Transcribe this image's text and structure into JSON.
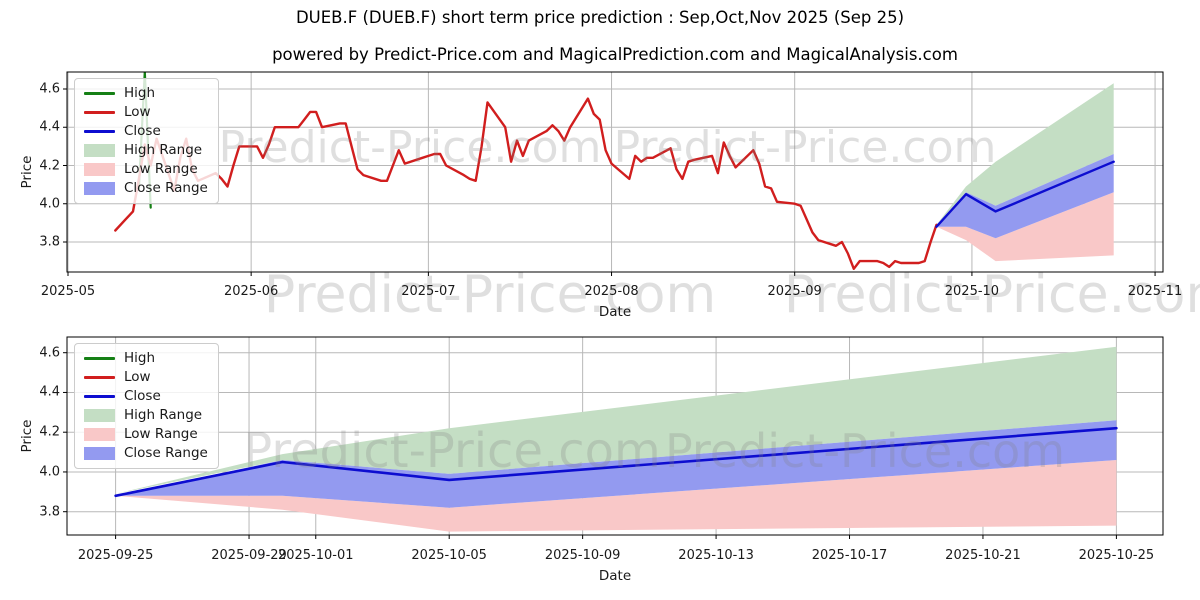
{
  "figure": {
    "title": "DUEB.F (DUEB.F) short term price prediction : Sep,Oct,Nov 2025 (Sep 25)",
    "subtitle": "powered by Predict-Price.com and MagicalPrediction.com and MagicalAnalysis.com",
    "watermark_text": "Predict-Price.com",
    "background": "#ffffff"
  },
  "colors": {
    "high_line": "#158015",
    "low_line": "#d11e1e",
    "close_line": "#0d0dd0",
    "high_range_fill": "#c4dec4",
    "low_range_fill": "#f9c8c8",
    "close_range_fill": "#939af0",
    "grid": "#b8b8b8",
    "spine": "#000000",
    "tick_label": "#1a1a1a",
    "watermark": "#808080"
  },
  "legend": {
    "items": [
      {
        "label": "High",
        "swatch": "line",
        "color": "#158015"
      },
      {
        "label": "Low",
        "swatch": "line",
        "color": "#d11e1e"
      },
      {
        "label": "Close",
        "swatch": "line",
        "color": "#0d0dd0"
      },
      {
        "label": "High Range",
        "swatch": "patch",
        "color": "#c4dec4"
      },
      {
        "label": "Low Range",
        "swatch": "patch",
        "color": "#f9c8c8"
      },
      {
        "label": "Close Range",
        "swatch": "patch",
        "color": "#939af0"
      }
    ]
  },
  "chart_data": [
    {
      "type": "line",
      "title": "",
      "xlabel": "Date",
      "ylabel": "Price",
      "grid": true,
      "legend_position": "upper left",
      "x_range": [
        "2025-05-01",
        "2025-11-01"
      ],
      "ylim": [
        3.64,
        4.69
      ],
      "yticks": [
        {
          "v": 3.8,
          "label": "3.8"
        },
        {
          "v": 4.0,
          "label": "4.0"
        },
        {
          "v": 4.2,
          "label": "4.2"
        },
        {
          "v": 4.4,
          "label": "4.4"
        },
        {
          "v": 4.6,
          "label": "4.6"
        }
      ],
      "xticks": [
        {
          "d": "2025-05-01",
          "label": "2025-05"
        },
        {
          "d": "2025-06-01",
          "label": "2025-06"
        },
        {
          "d": "2025-07-01",
          "label": "2025-07"
        },
        {
          "d": "2025-08-01",
          "label": "2025-08"
        },
        {
          "d": "2025-09-01",
          "label": "2025-09"
        },
        {
          "d": "2025-10-01",
          "label": "2025-10"
        },
        {
          "d": "2025-11-01",
          "label": "2025-11"
        }
      ],
      "bands": [
        {
          "name": "High Range",
          "color_key": "high_range_fill",
          "points": [
            [
              "2025-09-25",
              3.89,
              3.89
            ],
            [
              "2025-09-30",
              4.06,
              4.09
            ],
            [
              "2025-10-05",
              3.99,
              4.22
            ],
            [
              "2025-10-25",
              4.26,
              4.63
            ]
          ]
        },
        {
          "name": "Low Range",
          "color_key": "low_range_fill",
          "points": [
            [
              "2025-09-25",
              3.88,
              3.88
            ],
            [
              "2025-09-30",
              3.81,
              3.88
            ],
            [
              "2025-10-05",
              3.7,
              3.82
            ],
            [
              "2025-10-25",
              3.73,
              4.06
            ]
          ]
        },
        {
          "name": "Close Range",
          "color_key": "close_range_fill",
          "points": [
            [
              "2025-09-25",
              3.88,
              3.88
            ],
            [
              "2025-09-30",
              3.88,
              4.06
            ],
            [
              "2025-10-05",
              3.82,
              3.99
            ],
            [
              "2025-10-25",
              4.06,
              4.26
            ]
          ]
        }
      ],
      "series": [
        {
          "name": "High",
          "color_key": "high_line",
          "width": 2.2,
          "points": [
            [
              "2025-05-13",
              4.08
            ],
            [
              "2025-05-14",
              4.69
            ],
            [
              "2025-05-15",
              3.98
            ]
          ]
        },
        {
          "name": "Low",
          "color_key": "low_line",
          "width": 2.4,
          "points": [
            [
              "2025-05-09",
              3.86
            ],
            [
              "2025-05-12",
              3.96
            ],
            [
              "2025-05-13",
              4.13
            ],
            [
              "2025-05-14",
              4.31
            ],
            [
              "2025-05-15",
              4.2
            ],
            [
              "2025-05-16",
              4.34
            ],
            [
              "2025-05-19",
              4.07
            ],
            [
              "2025-05-20",
              4.24
            ],
            [
              "2025-05-21",
              4.34
            ],
            [
              "2025-05-22",
              4.18
            ],
            [
              "2025-05-23",
              4.12
            ],
            [
              "2025-05-26",
              4.16
            ],
            [
              "2025-05-27",
              4.13
            ],
            [
              "2025-05-28",
              4.09
            ],
            [
              "2025-05-29",
              4.2
            ],
            [
              "2025-05-30",
              4.3
            ],
            [
              "2025-06-02",
              4.3
            ],
            [
              "2025-06-03",
              4.24
            ],
            [
              "2025-06-04",
              4.31
            ],
            [
              "2025-06-05",
              4.4
            ],
            [
              "2025-06-06",
              4.4
            ],
            [
              "2025-06-09",
              4.4
            ],
            [
              "2025-06-10",
              4.44
            ],
            [
              "2025-06-11",
              4.48
            ],
            [
              "2025-06-12",
              4.48
            ],
            [
              "2025-06-13",
              4.4
            ],
            [
              "2025-06-16",
              4.42
            ],
            [
              "2025-06-17",
              4.42
            ],
            [
              "2025-06-18",
              4.3
            ],
            [
              "2025-06-19",
              4.18
            ],
            [
              "2025-06-20",
              4.15
            ],
            [
              "2025-06-23",
              4.12
            ],
            [
              "2025-06-24",
              4.12
            ],
            [
              "2025-06-25",
              4.2
            ],
            [
              "2025-06-26",
              4.28
            ],
            [
              "2025-06-27",
              4.21
            ],
            [
              "2025-06-30",
              4.24
            ],
            [
              "2025-07-01",
              4.25
            ],
            [
              "2025-07-02",
              4.26
            ],
            [
              "2025-07-03",
              4.26
            ],
            [
              "2025-07-04",
              4.2
            ],
            [
              "2025-07-07",
              4.15
            ],
            [
              "2025-07-08",
              4.13
            ],
            [
              "2025-07-09",
              4.12
            ],
            [
              "2025-07-10",
              4.3
            ],
            [
              "2025-07-11",
              4.53
            ],
            [
              "2025-07-14",
              4.4
            ],
            [
              "2025-07-15",
              4.22
            ],
            [
              "2025-07-16",
              4.33
            ],
            [
              "2025-07-17",
              4.25
            ],
            [
              "2025-07-18",
              4.33
            ],
            [
              "2025-07-21",
              4.38
            ],
            [
              "2025-07-22",
              4.41
            ],
            [
              "2025-07-23",
              4.38
            ],
            [
              "2025-07-24",
              4.33
            ],
            [
              "2025-07-25",
              4.4
            ],
            [
              "2025-07-28",
              4.55
            ],
            [
              "2025-07-29",
              4.47
            ],
            [
              "2025-07-30",
              4.44
            ],
            [
              "2025-07-31",
              4.28
            ],
            [
              "2025-08-01",
              4.21
            ],
            [
              "2025-08-04",
              4.13
            ],
            [
              "2025-08-05",
              4.25
            ],
            [
              "2025-08-06",
              4.22
            ],
            [
              "2025-08-07",
              4.24
            ],
            [
              "2025-08-08",
              4.24
            ],
            [
              "2025-08-11",
              4.29
            ],
            [
              "2025-08-12",
              4.18
            ],
            [
              "2025-08-13",
              4.13
            ],
            [
              "2025-08-14",
              4.22
            ],
            [
              "2025-08-15",
              4.23
            ],
            [
              "2025-08-18",
              4.25
            ],
            [
              "2025-08-19",
              4.16
            ],
            [
              "2025-08-20",
              4.32
            ],
            [
              "2025-08-21",
              4.25
            ],
            [
              "2025-08-22",
              4.19
            ],
            [
              "2025-08-25",
              4.28
            ],
            [
              "2025-08-26",
              4.21
            ],
            [
              "2025-08-27",
              4.09
            ],
            [
              "2025-08-28",
              4.08
            ],
            [
              "2025-08-29",
              4.01
            ],
            [
              "2025-09-01",
              4.0
            ],
            [
              "2025-09-02",
              3.99
            ],
            [
              "2025-09-03",
              3.92
            ],
            [
              "2025-09-04",
              3.85
            ],
            [
              "2025-09-05",
              3.81
            ],
            [
              "2025-09-08",
              3.78
            ],
            [
              "2025-09-09",
              3.8
            ],
            [
              "2025-09-10",
              3.74
            ],
            [
              "2025-09-11",
              3.66
            ],
            [
              "2025-09-12",
              3.7
            ],
            [
              "2025-09-15",
              3.7
            ],
            [
              "2025-09-16",
              3.69
            ],
            [
              "2025-09-17",
              3.67
            ],
            [
              "2025-09-18",
              3.7
            ],
            [
              "2025-09-19",
              3.69
            ],
            [
              "2025-09-22",
              3.69
            ],
            [
              "2025-09-23",
              3.7
            ],
            [
              "2025-09-24",
              3.8
            ],
            [
              "2025-09-25",
              3.89
            ]
          ]
        },
        {
          "name": "Close",
          "color_key": "close_line",
          "width": 2.4,
          "points": [
            [
              "2025-09-25",
              3.88
            ],
            [
              "2025-09-30",
              4.05
            ],
            [
              "2025-10-05",
              3.96
            ],
            [
              "2025-10-25",
              4.22
            ]
          ]
        }
      ]
    },
    {
      "type": "line",
      "title": "",
      "xlabel": "Date",
      "ylabel": "Price",
      "grid": true,
      "legend_position": "upper left",
      "x_range": [
        "2025-09-23",
        "2025-10-27"
      ],
      "ylim": [
        3.68,
        4.68
      ],
      "yticks": [
        {
          "v": 3.8,
          "label": "3.8"
        },
        {
          "v": 4.0,
          "label": "4.0"
        },
        {
          "v": 4.2,
          "label": "4.2"
        },
        {
          "v": 4.4,
          "label": "4.4"
        },
        {
          "v": 4.6,
          "label": "4.6"
        }
      ],
      "xticks": [
        {
          "d": "2025-09-25",
          "label": "2025-09-25"
        },
        {
          "d": "2025-09-29",
          "label": "2025-09-29"
        },
        {
          "d": "2025-10-01",
          "label": "2025-10-01"
        },
        {
          "d": "2025-10-05",
          "label": "2025-10-05"
        },
        {
          "d": "2025-10-09",
          "label": "2025-10-09"
        },
        {
          "d": "2025-10-13",
          "label": "2025-10-13"
        },
        {
          "d": "2025-10-17",
          "label": "2025-10-17"
        },
        {
          "d": "2025-10-21",
          "label": "2025-10-21"
        },
        {
          "d": "2025-10-25",
          "label": "2025-10-25"
        }
      ],
      "bands": [
        {
          "name": "High Range",
          "color_key": "high_range_fill",
          "points": [
            [
              "2025-09-25",
              3.89,
              3.89
            ],
            [
              "2025-09-30",
              4.06,
              4.09
            ],
            [
              "2025-10-05",
              3.99,
              4.22
            ],
            [
              "2025-10-25",
              4.26,
              4.63
            ]
          ]
        },
        {
          "name": "Low Range",
          "color_key": "low_range_fill",
          "points": [
            [
              "2025-09-25",
              3.88,
              3.88
            ],
            [
              "2025-09-30",
              3.81,
              3.88
            ],
            [
              "2025-10-05",
              3.7,
              3.82
            ],
            [
              "2025-10-25",
              3.73,
              4.06
            ]
          ]
        },
        {
          "name": "Close Range",
          "color_key": "close_range_fill",
          "points": [
            [
              "2025-09-25",
              3.88,
              3.88
            ],
            [
              "2025-09-30",
              3.88,
              4.06
            ],
            [
              "2025-10-05",
              3.82,
              3.99
            ],
            [
              "2025-10-25",
              4.06,
              4.26
            ]
          ]
        }
      ],
      "series": [
        {
          "name": "Close",
          "color_key": "close_line",
          "width": 2.6,
          "points": [
            [
              "2025-09-25",
              3.88
            ],
            [
              "2025-09-30",
              4.05
            ],
            [
              "2025-10-05",
              3.96
            ],
            [
              "2025-10-25",
              4.22
            ]
          ]
        }
      ]
    }
  ]
}
